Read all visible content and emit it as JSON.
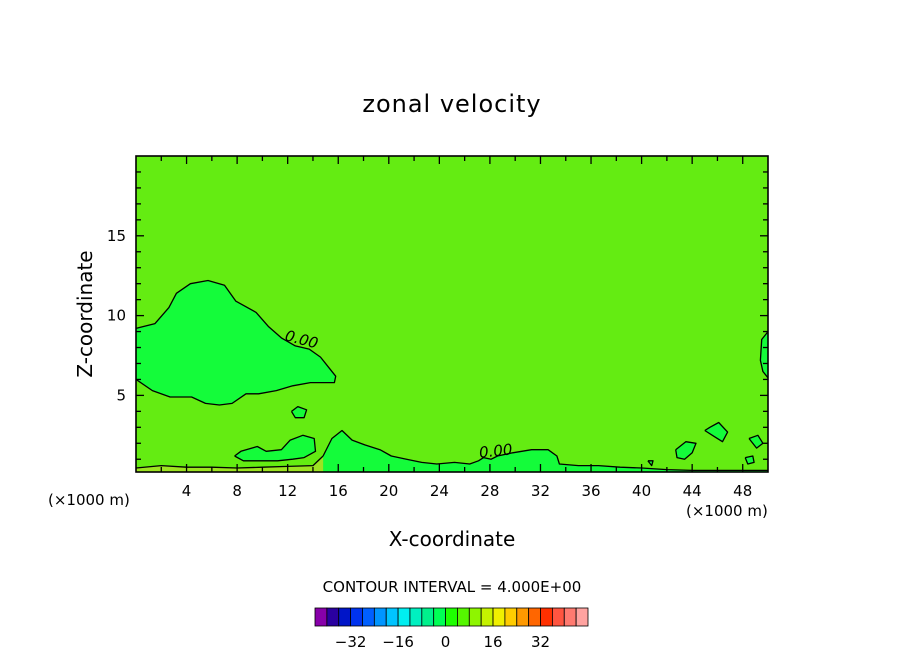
{
  "chart_data": {
    "type": "contour",
    "title": "zonal velocity",
    "xlabel": "X-coordinate",
    "ylabel": "Z-coordinate",
    "x_units": "(×1000 m)",
    "x_units_right": "(×1000 m)",
    "x_ticks": [
      4,
      8,
      12,
      16,
      20,
      24,
      28,
      32,
      36,
      40,
      44,
      48
    ],
    "y_ticks": [
      5,
      10,
      15
    ],
    "xlim": [
      0,
      50
    ],
    "ylim": [
      0.2,
      20
    ],
    "background_value": 0,
    "contour_labels": [
      {
        "text": "0.00",
        "x": 13.0,
        "y": 8.2,
        "angle": 15
      },
      {
        "text": "0.00",
        "x": 28.5,
        "y": 1.2,
        "angle": -6
      }
    ],
    "contour_0": [
      [
        [
          0,
          9.2
        ],
        [
          1.5,
          9.5
        ],
        [
          2.6,
          10.5
        ],
        [
          3.2,
          11.4
        ],
        [
          4.3,
          12.0
        ],
        [
          5.7,
          12.2
        ],
        [
          7.0,
          11.9
        ],
        [
          7.9,
          10.9
        ],
        [
          9.5,
          10.2
        ],
        [
          10.5,
          9.3
        ],
        [
          11.5,
          8.6
        ],
        [
          12.6,
          8.1
        ],
        [
          13.7,
          7.9
        ],
        [
          14.6,
          7.4
        ],
        [
          15.3,
          6.7
        ],
        [
          15.8,
          6.2
        ],
        [
          15.7,
          5.8
        ],
        [
          14.9,
          5.8
        ],
        [
          13.8,
          5.8
        ],
        [
          12.4,
          5.6
        ],
        [
          11.1,
          5.3
        ],
        [
          9.7,
          5.1
        ],
        [
          8.7,
          5.1
        ],
        [
          7.6,
          4.5
        ],
        [
          6.6,
          4.4
        ],
        [
          5.5,
          4.5
        ],
        [
          4.4,
          4.9
        ],
        [
          2.7,
          4.9
        ],
        [
          1.3,
          5.3
        ],
        [
          0,
          6.0
        ]
      ],
      [
        [
          12.3,
          4.0
        ],
        [
          12.8,
          4.3
        ],
        [
          13.5,
          4.1
        ],
        [
          13.3,
          3.6
        ],
        [
          12.6,
          3.6
        ],
        [
          12.3,
          4.0
        ]
      ],
      [
        [
          7.8,
          1.2
        ],
        [
          8.3,
          1.5
        ],
        [
          9.6,
          1.8
        ],
        [
          10.3,
          1.5
        ],
        [
          11.5,
          1.6
        ],
        [
          12.2,
          2.2
        ],
        [
          13.2,
          2.5
        ],
        [
          14.1,
          2.3
        ],
        [
          14.2,
          1.5
        ],
        [
          13.3,
          1.1
        ],
        [
          12.4,
          1.0
        ],
        [
          11.2,
          0.9
        ],
        [
          10.0,
          0.9
        ],
        [
          8.5,
          0.9
        ],
        [
          7.8,
          1.2
        ]
      ],
      [
        [
          14.8,
          1.2
        ],
        [
          15.5,
          2.3
        ],
        [
          16.3,
          2.8
        ],
        [
          17.1,
          2.2
        ],
        [
          18.1,
          1.9
        ],
        [
          19.3,
          1.6
        ],
        [
          20.2,
          1.2
        ],
        [
          21.4,
          1.0
        ],
        [
          22.6,
          0.8
        ],
        [
          23.8,
          0.7
        ],
        [
          25.2,
          0.8
        ],
        [
          26.4,
          0.7
        ],
        [
          27.1,
          0.9
        ],
        [
          27.5,
          1.1
        ],
        [
          28.1,
          1.0
        ],
        [
          28.6,
          1.2
        ],
        [
          29.8,
          1.4
        ],
        [
          31.3,
          1.6
        ],
        [
          32.6,
          1.6
        ],
        [
          33.3,
          1.2
        ],
        [
          33.5,
          0.7
        ],
        [
          35.0,
          0.6
        ],
        [
          36.6,
          0.6
        ],
        [
          38.3,
          0.5
        ],
        [
          40.0,
          0.45
        ],
        [
          42.0,
          0.35
        ],
        [
          44.0,
          0.3
        ],
        [
          46.0,
          0.3
        ],
        [
          48.0,
          0.3
        ],
        [
          50,
          0.3
        ]
      ],
      [
        [
          0,
          0.45
        ],
        [
          2.0,
          0.6
        ],
        [
          4.0,
          0.5
        ],
        [
          6.0,
          0.5
        ],
        [
          8.0,
          0.45
        ],
        [
          10.0,
          0.5
        ],
        [
          12.0,
          0.55
        ],
        [
          14.0,
          0.6
        ],
        [
          14.8,
          1.2
        ]
      ],
      [
        [
          42.7,
          1.6
        ],
        [
          43.5,
          2.1
        ],
        [
          44.3,
          2.0
        ],
        [
          44.0,
          1.4
        ],
        [
          43.4,
          1.0
        ],
        [
          42.8,
          1.1
        ],
        [
          42.7,
          1.6
        ]
      ],
      [
        [
          45.0,
          2.8
        ],
        [
          45.4,
          3.0
        ],
        [
          46.1,
          3.3
        ],
        [
          46.8,
          2.7
        ],
        [
          46.4,
          2.1
        ],
        [
          45.8,
          2.4
        ],
        [
          45.0,
          2.8
        ]
      ],
      [
        [
          48.5,
          2.3
        ],
        [
          49.2,
          2.5
        ],
        [
          49.6,
          2.0
        ],
        [
          49.1,
          1.7
        ],
        [
          48.5,
          2.3
        ]
      ],
      [
        [
          48.2,
          1.1
        ],
        [
          48.8,
          1.2
        ],
        [
          48.9,
          0.8
        ],
        [
          48.4,
          0.7
        ],
        [
          48.2,
          1.1
        ]
      ],
      [
        [
          40.5,
          0.9
        ],
        [
          40.9,
          0.9
        ],
        [
          40.8,
          0.6
        ],
        [
          40.5,
          0.9
        ]
      ],
      [
        [
          50,
          9.0
        ],
        [
          49.5,
          8.5
        ],
        [
          49.4,
          7.2
        ],
        [
          49.6,
          6.5
        ],
        [
          50,
          6.1
        ]
      ]
    ],
    "colorbar": {
      "title": "CONTOUR INTERVAL = 4.000E+00",
      "tick_labels": [
        "−32",
        "−16",
        "0",
        "16",
        "32"
      ],
      "tick_values": [
        -32,
        -16,
        0,
        16,
        32
      ],
      "colors": [
        "#8800aa",
        "#2a00a0",
        "#0015c8",
        "#0033ee",
        "#0060ff",
        "#0095ff",
        "#00c4ff",
        "#00eef0",
        "#00f0c0",
        "#00f08c",
        "#00ff55",
        "#1eff00",
        "#55f700",
        "#8ef500",
        "#c5f200",
        "#f0f000",
        "#ffcc00",
        "#ff9900",
        "#ff6600",
        "#ff3000",
        "#ff5540",
        "#ff7a70",
        "#ffa3a0"
      ]
    },
    "palette": {
      "background": "#64ec12",
      "contour_area": "#14fc3a",
      "near_surface": "#9de322",
      "line": "#000000"
    }
  }
}
